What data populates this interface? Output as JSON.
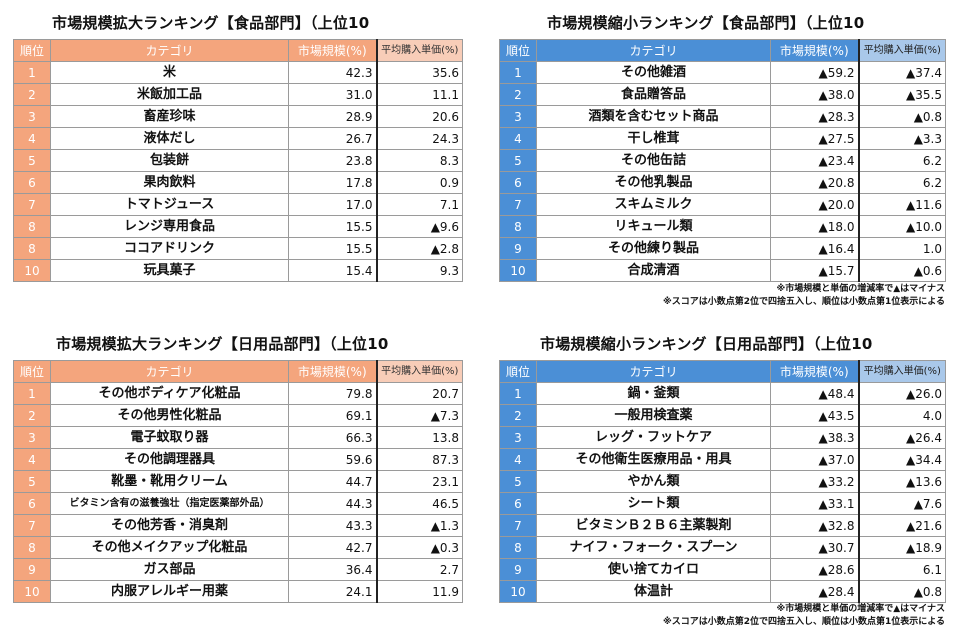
{
  "panels": [
    {
      "id": "expand-food",
      "title": "市場規模拡大ランキング【食品部門】（上位10",
      "headers": {
        "rank": "順位",
        "category": "カテゴリ",
        "market": "市場規模(%)",
        "price": "平均購入単価(%)"
      },
      "rows": [
        {
          "rank": "1",
          "category": "米",
          "market": "42.3",
          "price": "35.6"
        },
        {
          "rank": "2",
          "category": "米飯加工品",
          "market": "31.0",
          "price": "11.1"
        },
        {
          "rank": "3",
          "category": "畜産珍味",
          "market": "28.9",
          "price": "20.6"
        },
        {
          "rank": "4",
          "category": "液体だし",
          "market": "26.7",
          "price": "24.3"
        },
        {
          "rank": "5",
          "category": "包装餅",
          "market": "23.8",
          "price": "8.3"
        },
        {
          "rank": "6",
          "category": "果肉飲料",
          "market": "17.8",
          "price": "0.9"
        },
        {
          "rank": "7",
          "category": "トマトジュース",
          "market": "17.0",
          "price": "7.1"
        },
        {
          "rank": "8",
          "category": "レンジ専用食品",
          "market": "15.5",
          "price": "▲9.6"
        },
        {
          "rank": "8",
          "category": "ココアドリンク",
          "market": "15.5",
          "price": "▲2.8"
        },
        {
          "rank": "10",
          "category": "玩具菓子",
          "market": "15.4",
          "price": "9.3"
        }
      ]
    },
    {
      "id": "shrink-food",
      "title": "市場規模縮小ランキング【食品部門】（上位10",
      "headers": {
        "rank": "順位",
        "category": "カテゴリ",
        "market": "市場規模(%)",
        "price": "平均購入単価(%)"
      },
      "rows": [
        {
          "rank": "1",
          "category": "その他雑酒",
          "market": "▲59.2",
          "price": "▲37.4"
        },
        {
          "rank": "2",
          "category": "食品贈答品",
          "market": "▲38.0",
          "price": "▲35.5"
        },
        {
          "rank": "3",
          "category": "酒類を含むセット商品",
          "market": "▲28.3",
          "price": "▲0.8"
        },
        {
          "rank": "4",
          "category": "干し椎茸",
          "market": "▲27.5",
          "price": "▲3.3"
        },
        {
          "rank": "5",
          "category": "その他缶詰",
          "market": "▲23.4",
          "price": "6.2"
        },
        {
          "rank": "6",
          "category": "その他乳製品",
          "market": "▲20.8",
          "price": "6.2"
        },
        {
          "rank": "7",
          "category": "スキムミルク",
          "market": "▲20.0",
          "price": "▲11.6"
        },
        {
          "rank": "8",
          "category": "リキュール類",
          "market": "▲18.0",
          "price": "▲10.0"
        },
        {
          "rank": "9",
          "category": "その他練り製品",
          "market": "▲16.4",
          "price": "1.0"
        },
        {
          "rank": "10",
          "category": "合成清酒",
          "market": "▲15.7",
          "price": "▲0.6"
        }
      ],
      "notes": [
        "※市場規模と単価の増減率で▲はマイナス",
        "※スコアは小数点第2位で四捨五入し、順位は小数点第1位表示による"
      ]
    },
    {
      "id": "expand-daily",
      "title": "市場規模拡大ランキング【日用品部門】（上位10",
      "headers": {
        "rank": "順位",
        "category": "カテゴリ",
        "market": "市場規模(%)",
        "price": "平均購入単価(%)"
      },
      "rows": [
        {
          "rank": "1",
          "category": "その他ボディケア化粧品",
          "market": "79.8",
          "price": "20.7"
        },
        {
          "rank": "2",
          "category": "その他男性化粧品",
          "market": "69.1",
          "price": "▲7.3"
        },
        {
          "rank": "3",
          "category": "電子蚊取り器",
          "market": "66.3",
          "price": "13.8"
        },
        {
          "rank": "4",
          "category": "その他調理器具",
          "market": "59.6",
          "price": "87.3"
        },
        {
          "rank": "5",
          "category": "靴墨・靴用クリーム",
          "market": "44.7",
          "price": "23.1"
        },
        {
          "rank": "6",
          "category": "ビタミン含有の滋養強壮（指定医薬部外品）",
          "market": "44.3",
          "price": "46.5",
          "tiny": true
        },
        {
          "rank": "7",
          "category": "その他芳香・消臭剤",
          "market": "43.3",
          "price": "▲1.3"
        },
        {
          "rank": "8",
          "category": "その他メイクアップ化粧品",
          "market": "42.7",
          "price": "▲0.3"
        },
        {
          "rank": "9",
          "category": "ガス部品",
          "market": "36.4",
          "price": "2.7"
        },
        {
          "rank": "10",
          "category": "内服アレルギー用薬",
          "market": "24.1",
          "price": "11.9"
        }
      ]
    },
    {
      "id": "shrink-daily",
      "title": "市場規模縮小ランキング【日用品部門】（上位10",
      "headers": {
        "rank": "順位",
        "category": "カテゴリ",
        "market": "市場規模(%)",
        "price": "平均購入単価(%)"
      },
      "rows": [
        {
          "rank": "1",
          "category": "鍋・釜類",
          "market": "▲48.4",
          "price": "▲26.0"
        },
        {
          "rank": "2",
          "category": "一般用検査薬",
          "market": "▲43.5",
          "price": "4.0"
        },
        {
          "rank": "3",
          "category": "レッグ・フットケア",
          "market": "▲38.3",
          "price": "▲26.4"
        },
        {
          "rank": "4",
          "category": "その他衛生医療用品・用具",
          "market": "▲37.0",
          "price": "▲34.4"
        },
        {
          "rank": "5",
          "category": "やかん類",
          "market": "▲33.2",
          "price": "▲13.6"
        },
        {
          "rank": "6",
          "category": "シート類",
          "market": "▲33.1",
          "price": "▲7.6"
        },
        {
          "rank": "7",
          "category": "ビタミンＢ２Ｂ６主薬製剤",
          "market": "▲32.8",
          "price": "▲21.6"
        },
        {
          "rank": "8",
          "category": "ナイフ・フォーク・スプーン",
          "market": "▲30.7",
          "price": "▲18.9"
        },
        {
          "rank": "9",
          "category": "使い捨てカイロ",
          "market": "▲28.6",
          "price": "6.1"
        },
        {
          "rank": "10",
          "category": "体温計",
          "market": "▲28.4",
          "price": "▲0.8"
        }
      ],
      "notes": [
        "※市場規模と単価の増減率で▲はマイナス",
        "※スコアは小数点第2位で四捨五入し、順位は小数点第1位表示による"
      ]
    }
  ]
}
